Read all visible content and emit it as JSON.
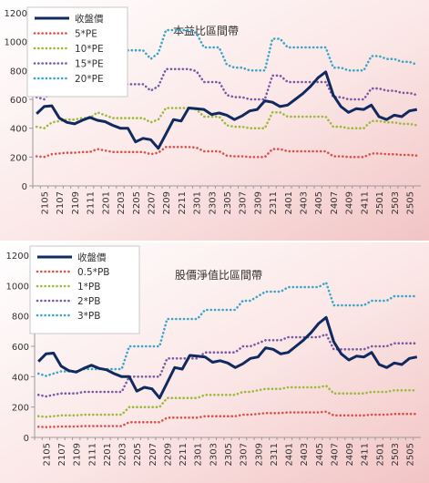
{
  "chart_data": [
    {
      "type": "line",
      "title": "本益比區間帶",
      "xlabel": "",
      "ylabel": "",
      "ylim": [
        0,
        1200
      ],
      "yticks": [
        0,
        200,
        400,
        600,
        800,
        1000,
        1200
      ],
      "grid": false,
      "legend_position": "top-left",
      "background": "gradient-white-to-pink",
      "x": [
        "2104",
        "2105",
        "2106",
        "2107",
        "2108",
        "2109",
        "2110",
        "2111",
        "2112",
        "2201",
        "2202",
        "2203",
        "2204",
        "2205",
        "2206",
        "2207",
        "2208",
        "2209",
        "2210",
        "2211",
        "2212",
        "2301",
        "2302",
        "2303",
        "2304",
        "2305",
        "2306",
        "2307",
        "2308",
        "2309",
        "2310",
        "2311",
        "2312",
        "2401",
        "2402",
        "2403",
        "2404",
        "2405",
        "2406",
        "2407",
        "2408",
        "2409",
        "2410",
        "2411",
        "2412",
        "2501",
        "2502",
        "2503",
        "2504",
        "2505",
        "2506"
      ],
      "x_tick_labels": [
        "2105",
        "2107",
        "2109",
        "2111",
        "2201",
        "2203",
        "2205",
        "2207",
        "2209",
        "2211",
        "2301",
        "2303",
        "2305",
        "2307",
        "2309",
        "2311",
        "2401",
        "2403",
        "2405",
        "2407",
        "2409",
        "2411",
        "2501",
        "2503",
        "2505"
      ],
      "series": [
        {
          "name": "收盤價",
          "style": "solid",
          "color": "#0f2a5e",
          "values": [
            500,
            550,
            555,
            470,
            440,
            430,
            455,
            475,
            455,
            445,
            420,
            400,
            400,
            305,
            330,
            320,
            260,
            360,
            460,
            450,
            540,
            535,
            530,
            495,
            505,
            490,
            460,
            485,
            520,
            530,
            590,
            580,
            550,
            560,
            600,
            640,
            690,
            750,
            790,
            630,
            550,
            510,
            535,
            530,
            560,
            480,
            460,
            490,
            480,
            520,
            530
          ]
        },
        {
          "name": "5*PE",
          "style": "dotted",
          "color": "#d9544d",
          "values": [
            205,
            200,
            220,
            225,
            230,
            230,
            235,
            235,
            255,
            245,
            235,
            235,
            235,
            235,
            235,
            220,
            230,
            270,
            270,
            270,
            270,
            265,
            240,
            240,
            240,
            210,
            205,
            205,
            200,
            200,
            200,
            255,
            255,
            240,
            240,
            240,
            240,
            240,
            240,
            205,
            205,
            200,
            200,
            200,
            225,
            225,
            220,
            220,
            215,
            215,
            210
          ]
        },
        {
          "name": "10*PE",
          "style": "dotted",
          "color": "#9bbb3b",
          "values": [
            410,
            400,
            440,
            450,
            460,
            460,
            470,
            470,
            510,
            490,
            470,
            470,
            470,
            470,
            470,
            440,
            460,
            540,
            540,
            540,
            540,
            530,
            480,
            480,
            480,
            420,
            410,
            410,
            400,
            400,
            400,
            510,
            510,
            480,
            480,
            480,
            480,
            480,
            480,
            410,
            410,
            400,
            400,
            400,
            450,
            450,
            440,
            440,
            430,
            430,
            420
          ]
        },
        {
          "name": "15*PE",
          "style": "dotted",
          "color": "#7a5aa6",
          "values": [
            615,
            600,
            660,
            675,
            690,
            690,
            705,
            705,
            765,
            735,
            705,
            705,
            705,
            705,
            705,
            660,
            690,
            810,
            810,
            810,
            810,
            795,
            720,
            720,
            720,
            630,
            615,
            615,
            600,
            600,
            600,
            765,
            765,
            720,
            720,
            720,
            720,
            720,
            720,
            615,
            615,
            600,
            600,
            600,
            675,
            675,
            660,
            660,
            645,
            645,
            630
          ]
        },
        {
          "name": "20*PE",
          "style": "dotted",
          "color": "#3aa6c8",
          "values": [
            820,
            800,
            880,
            900,
            920,
            920,
            940,
            940,
            1020,
            980,
            940,
            940,
            940,
            940,
            940,
            880,
            920,
            1080,
            1080,
            1080,
            1080,
            1060,
            960,
            960,
            960,
            840,
            820,
            820,
            800,
            800,
            800,
            1020,
            1020,
            960,
            960,
            960,
            960,
            960,
            960,
            820,
            820,
            800,
            800,
            800,
            900,
            900,
            880,
            880,
            860,
            860,
            840
          ]
        }
      ]
    },
    {
      "type": "line",
      "title": "股價淨值比區間帶",
      "xlabel": "",
      "ylabel": "",
      "ylim": [
        0,
        1200
      ],
      "yticks": [
        0,
        200,
        400,
        600,
        800,
        1000,
        1200
      ],
      "grid": false,
      "legend_position": "top-left",
      "background": "gradient-white-to-pink",
      "x": [
        "2104",
        "2105",
        "2106",
        "2107",
        "2108",
        "2109",
        "2110",
        "2111",
        "2112",
        "2201",
        "2202",
        "2203",
        "2204",
        "2205",
        "2206",
        "2207",
        "2208",
        "2209",
        "2210",
        "2211",
        "2212",
        "2301",
        "2302",
        "2303",
        "2304",
        "2305",
        "2306",
        "2307",
        "2308",
        "2309",
        "2310",
        "2311",
        "2312",
        "2401",
        "2402",
        "2403",
        "2404",
        "2405",
        "2406",
        "2407",
        "2408",
        "2409",
        "2410",
        "2411",
        "2412",
        "2501",
        "2502",
        "2503",
        "2504",
        "2505",
        "2506"
      ],
      "x_tick_labels": [
        "2105",
        "2107",
        "2109",
        "2111",
        "2201",
        "2203",
        "2205",
        "2207",
        "2209",
        "2211",
        "2301",
        "2303",
        "2305",
        "2307",
        "2309",
        "2311",
        "2401",
        "2403",
        "2405",
        "2407",
        "2409",
        "2411",
        "2501",
        "2503",
        "2505"
      ],
      "series": [
        {
          "name": "收盤價",
          "style": "solid",
          "color": "#0f2a5e",
          "values": [
            500,
            550,
            555,
            470,
            440,
            430,
            455,
            475,
            455,
            445,
            420,
            400,
            400,
            305,
            330,
            320,
            260,
            360,
            460,
            450,
            540,
            535,
            530,
            495,
            505,
            490,
            460,
            485,
            520,
            530,
            590,
            580,
            550,
            560,
            600,
            640,
            690,
            750,
            790,
            630,
            550,
            510,
            535,
            530,
            560,
            480,
            460,
            490,
            480,
            520,
            530
          ]
        },
        {
          "name": "0.5*PB",
          "style": "dotted",
          "color": "#d9544d",
          "values": [
            70,
            68,
            70,
            72,
            72,
            72,
            75,
            75,
            75,
            75,
            75,
            75,
            100,
            100,
            100,
            100,
            100,
            130,
            130,
            130,
            130,
            130,
            140,
            140,
            140,
            140,
            140,
            150,
            150,
            155,
            160,
            160,
            160,
            165,
            165,
            165,
            165,
            165,
            170,
            145,
            145,
            145,
            145,
            145,
            150,
            150,
            150,
            155,
            155,
            155,
            155
          ]
        },
        {
          "name": "1*PB",
          "style": "dotted",
          "color": "#9bbb3b",
          "values": [
            140,
            135,
            140,
            145,
            145,
            145,
            150,
            150,
            150,
            150,
            150,
            150,
            200,
            200,
            200,
            200,
            200,
            260,
            260,
            260,
            260,
            260,
            280,
            280,
            280,
            280,
            280,
            300,
            300,
            310,
            320,
            320,
            320,
            330,
            330,
            330,
            330,
            330,
            340,
            290,
            290,
            290,
            290,
            290,
            300,
            300,
            300,
            310,
            310,
            310,
            310
          ]
        },
        {
          "name": "2*PB",
          "style": "dotted",
          "color": "#7a5aa6",
          "values": [
            280,
            270,
            280,
            290,
            290,
            290,
            300,
            300,
            300,
            300,
            300,
            300,
            400,
            400,
            400,
            400,
            400,
            520,
            520,
            520,
            520,
            520,
            560,
            560,
            560,
            560,
            560,
            600,
            600,
            620,
            640,
            640,
            640,
            660,
            660,
            660,
            660,
            660,
            680,
            580,
            580,
            580,
            580,
            580,
            600,
            600,
            600,
            620,
            620,
            620,
            620
          ]
        },
        {
          "name": "3*PB",
          "style": "dotted",
          "color": "#3aa6c8",
          "values": [
            420,
            405,
            420,
            435,
            435,
            435,
            450,
            450,
            450,
            450,
            450,
            450,
            600,
            600,
            600,
            600,
            600,
            780,
            780,
            780,
            780,
            780,
            840,
            840,
            840,
            840,
            840,
            900,
            900,
            930,
            960,
            960,
            960,
            990,
            990,
            990,
            990,
            990,
            1020,
            870,
            870,
            870,
            870,
            870,
            900,
            900,
            900,
            930,
            930,
            930,
            930
          ]
        }
      ]
    }
  ]
}
